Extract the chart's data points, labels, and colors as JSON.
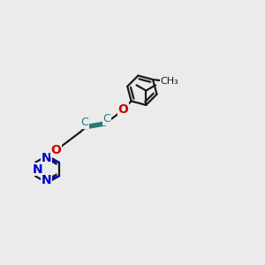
{
  "bg_color": "#ebebeb",
  "bond_color": "#1a1a1a",
  "triple_bond_color": "#2a7a7a",
  "o_color": "#cc0000",
  "n_color": "#0000cc",
  "line_width": 1.6,
  "font_size": 9,
  "fig_w": 3.0,
  "fig_h": 3.0,
  "dpi": 100,
  "xlim": [
    0,
    10
  ],
  "ylim": [
    0,
    10
  ]
}
